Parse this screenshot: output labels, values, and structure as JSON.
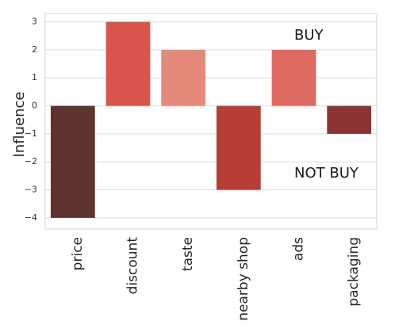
{
  "chart_data": {
    "type": "bar",
    "title": "",
    "xlabel": "",
    "ylabel": "Influence",
    "categories": [
      "price",
      "discount",
      "taste",
      "nearby shop",
      "ads",
      "packaging"
    ],
    "values": [
      -4,
      3,
      2,
      -3,
      2,
      -1
    ],
    "colors": [
      "#5e3330",
      "#d9544a",
      "#e58a78",
      "#b73e35",
      "#df6a5f",
      "#8c3434"
    ],
    "ylim": [
      -4.4,
      3.3
    ],
    "yticks": [
      3,
      2,
      1,
      0,
      -1,
      -2,
      -3,
      -4
    ],
    "ytick_labels": [
      "3",
      "2",
      "1",
      "0",
      "−1",
      "−2",
      "−3",
      "−4"
    ],
    "grid": true,
    "annotations": [
      {
        "text": "BUY"
      },
      {
        "text": "NOT BUY"
      }
    ]
  }
}
